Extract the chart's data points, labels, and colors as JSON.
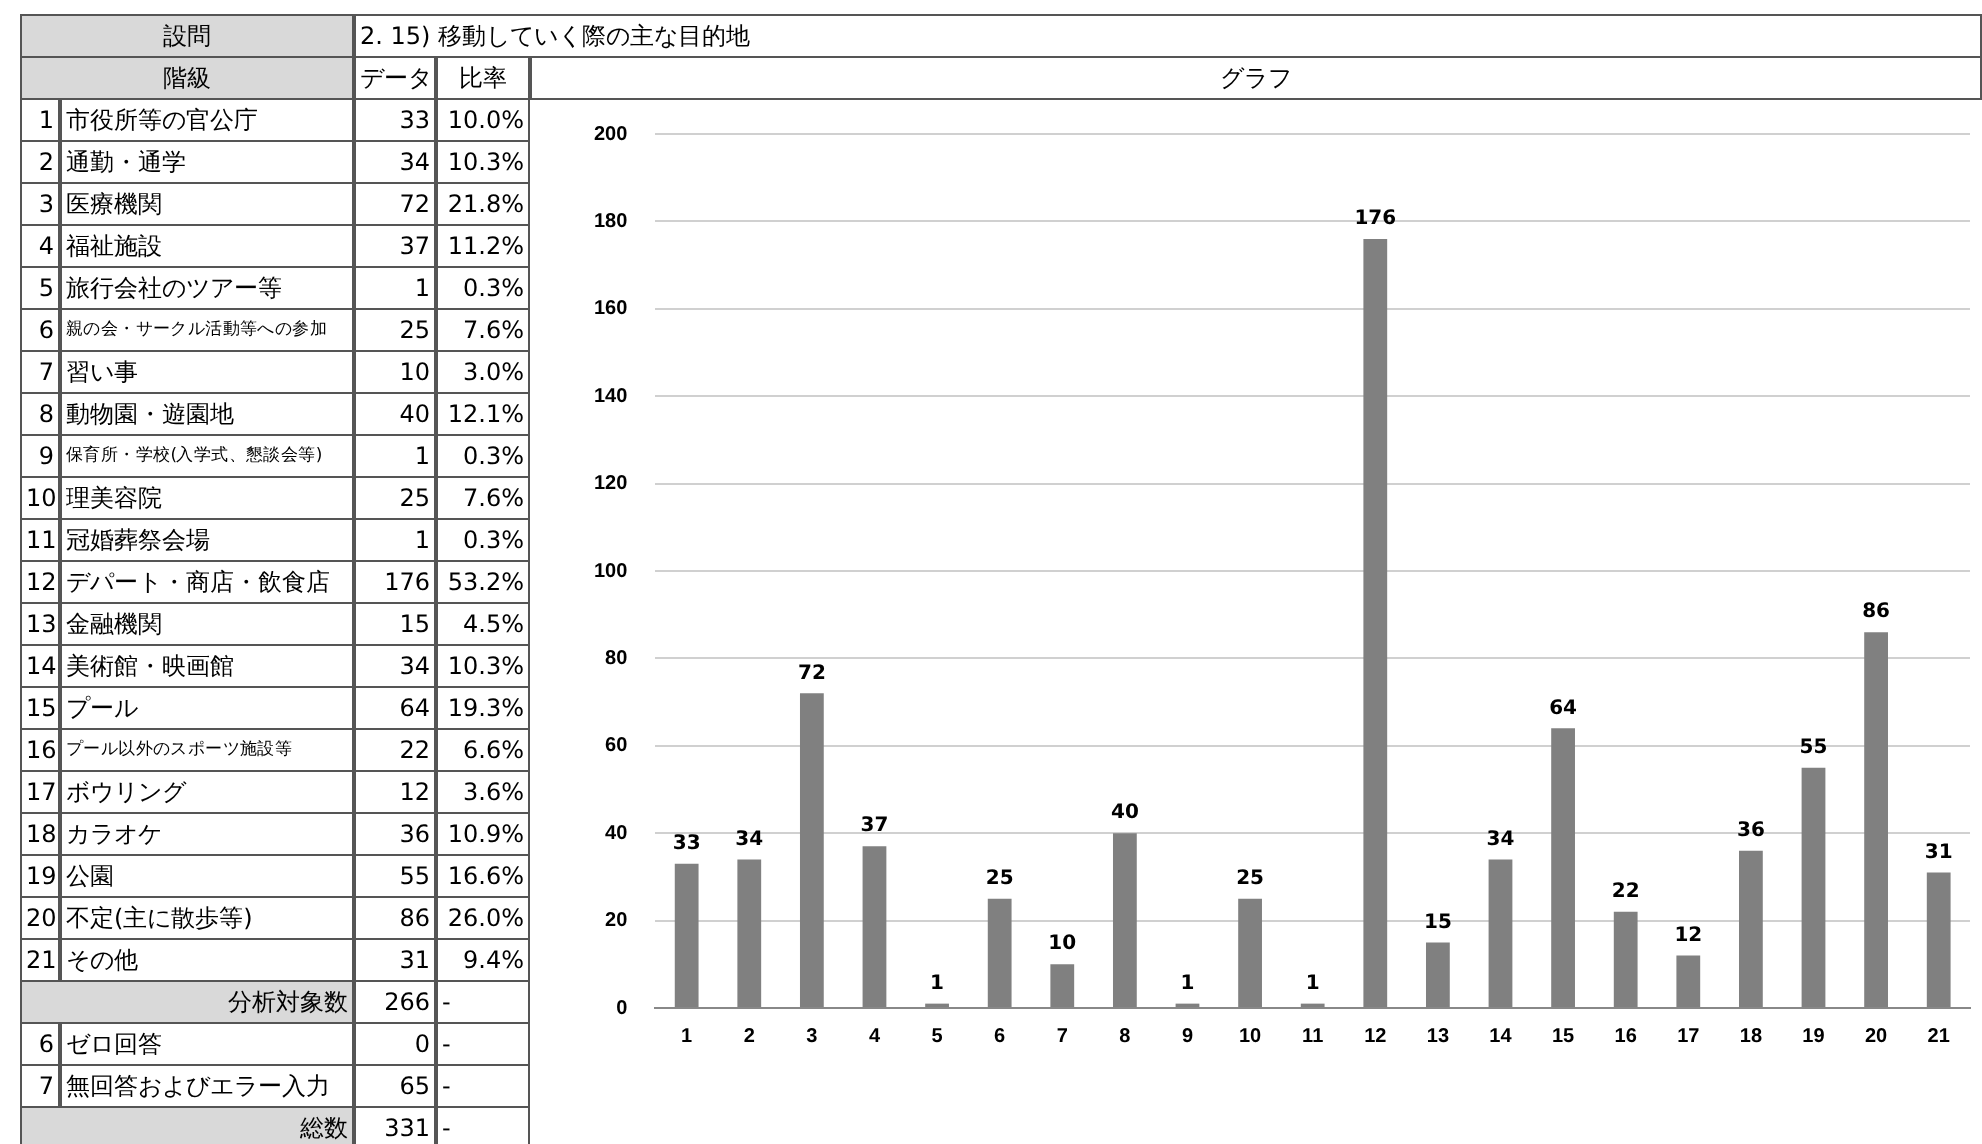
{
  "chart_data": {
    "type": "bar",
    "title": "2. 15) 移動していく際の主な目的地",
    "subtitle": "グラフ",
    "categories": [
      "1",
      "2",
      "3",
      "4",
      "5",
      "6",
      "7",
      "8",
      "9",
      "10",
      "11",
      "12",
      "13",
      "14",
      "15",
      "16",
      "17",
      "18",
      "19",
      "20",
      "21"
    ],
    "values": [
      33,
      34,
      72,
      37,
      1,
      25,
      10,
      40,
      1,
      25,
      1,
      176,
      15,
      34,
      64,
      22,
      12,
      36,
      55,
      86,
      31
    ],
    "color": "#808080",
    "data_labels": true,
    "ylim": [
      0,
      200
    ],
    "yticks": [
      0,
      20,
      40,
      60,
      80,
      100,
      120,
      140,
      160,
      180,
      200
    ],
    "grid": "y",
    "legend": false,
    "annotations": [
      "設問",
      "階級",
      "データ",
      "比率",
      "市役所等の官公庁",
      "33",
      "10.0%",
      "通勤・通学",
      "34",
      "10.3%",
      "医療機関",
      "72",
      "21.8%",
      "福祉施設",
      "37",
      "11.2%",
      "旅行会社のツアー等",
      "1",
      "0.3%",
      "親の会・サークル活動等への参加",
      "25",
      "7.6%",
      "習い事",
      "10",
      "3.0%",
      "動物園・遊園地",
      "40",
      "12.1%",
      "保育所・学校(入学式、懇談会等)",
      "1",
      "0.3%",
      "理美容院",
      "25",
      "7.6%",
      "冠婚葬祭会場",
      "1",
      "0.3%",
      "デパート・商店・飲食店",
      "176",
      "53.2%",
      "金融機関",
      "15",
      "4.5%",
      "美術館・映画館",
      "34",
      "10.3%",
      "プール",
      "64",
      "19.3%",
      "プール以外のスポーツ施設等",
      "22",
      "6.6%",
      "ボウリング",
      "12",
      "3.6%",
      "カラオケ",
      "36",
      "10.9%",
      "公園",
      "55",
      "16.6%",
      "不定(主に散歩等)",
      "86",
      "26.0%",
      "その他",
      "31",
      "9.4%",
      "分析対象数",
      "266",
      "-",
      "6",
      "ゼロ回答",
      "0",
      "-",
      "7",
      "無回答およびエラー入力",
      "65",
      "-",
      "総数",
      "331",
      "-"
    ]
  }
}
